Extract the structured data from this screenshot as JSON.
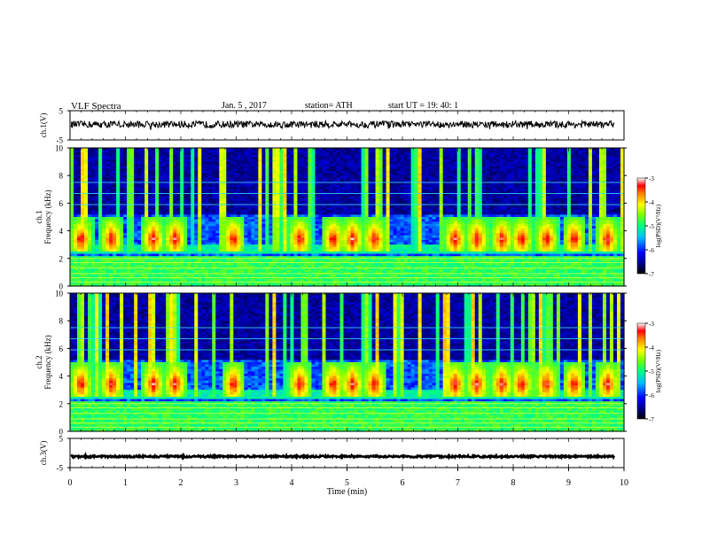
{
  "header": {
    "title": "VLF  Spectra",
    "date": "Jan.  5  , 2017",
    "station": "station= ATH",
    "start": "start  UT  =    19: 40: 1"
  },
  "colors": {
    "spectrogram_map": [
      "#000000",
      "#000080",
      "#0000ff",
      "#00a0ff",
      "#00ffff",
      "#00ff80",
      "#80ff00",
      "#ffff00",
      "#ff8000",
      "#ff0000",
      "#ffffff"
    ],
    "trace": "#000000"
  },
  "chart_data": [
    {
      "type": "line",
      "panel": "ch1-waveform",
      "ylabel": "ch.1(V)",
      "yticks": [
        "5",
        "-5"
      ],
      "ylim": [
        -5,
        5
      ],
      "xlim": [
        0,
        10
      ],
      "description_level": "noisy broadband trace centered slightly above 0 V",
      "mean": 0.3,
      "amplitude": 1.2
    },
    {
      "type": "heatmap",
      "panel": "ch1-spectrogram",
      "ylabel": "ch.1\nFrequency  (kHz)",
      "ylabel_lines": [
        "ch.1",
        "Frequency  (kHz)"
      ],
      "yticks": [
        "0",
        "2",
        "4",
        "6",
        "8",
        "10"
      ],
      "ylim": [
        0,
        10
      ],
      "xlim": [
        0,
        10
      ],
      "colorbar": {
        "label": "log(PSD)(V²/Hz)",
        "ticks": [
          "-3",
          "-4",
          "-5",
          "-6",
          "-7"
        ],
        "range": [
          -7,
          -3
        ]
      },
      "bursts_min": [
        0.2,
        0.75,
        1.5,
        1.9,
        2.95,
        4.15,
        4.75,
        5.1,
        5.5,
        6.95,
        7.35,
        7.8,
        8.15,
        8.6,
        9.1,
        9.7
      ],
      "burst_band_khz": [
        2.5,
        5.0
      ],
      "horizontal_lines_khz": [
        0.3,
        0.6,
        0.9,
        1.3,
        1.7,
        2.0,
        6.7,
        5.9,
        7.5
      ]
    },
    {
      "type": "heatmap",
      "panel": "ch2-spectrogram",
      "ylabel_lines": [
        "ch.2",
        "Frequency  (kHz)"
      ],
      "yticks": [
        "0",
        "2",
        "4",
        "6",
        "8",
        "10"
      ],
      "ylim": [
        0,
        10
      ],
      "xlim": [
        0,
        10
      ],
      "colorbar": {
        "label": "log(PSD)(V²/Hz)",
        "ticks": [
          "-3",
          "-4",
          "-5",
          "-6",
          "-7"
        ],
        "range": [
          -7,
          -3
        ]
      },
      "bursts_min": [
        0.2,
        0.75,
        1.5,
        1.9,
        2.95,
        4.15,
        4.75,
        5.1,
        5.5,
        6.95,
        7.35,
        7.8,
        8.15,
        8.6,
        9.1,
        9.7
      ],
      "burst_band_khz": [
        2.5,
        5.0
      ],
      "horizontal_lines_khz": [
        0.3,
        0.6,
        0.9,
        1.3,
        1.7,
        2.0,
        6.7,
        5.9,
        7.5
      ]
    },
    {
      "type": "line",
      "panel": "ch3-waveform",
      "ylabel": "ch.3(V)",
      "yticks": [
        "5",
        "-5"
      ],
      "ylim": [
        -5,
        5
      ],
      "xlim": [
        0,
        10
      ],
      "mean": -1.2,
      "amplitude": 0.3
    }
  ],
  "xaxis": {
    "label": "Time  (min)",
    "ticks": [
      "0",
      "1",
      "2",
      "3",
      "4",
      "5",
      "6",
      "7",
      "8",
      "9",
      "10"
    ]
  }
}
